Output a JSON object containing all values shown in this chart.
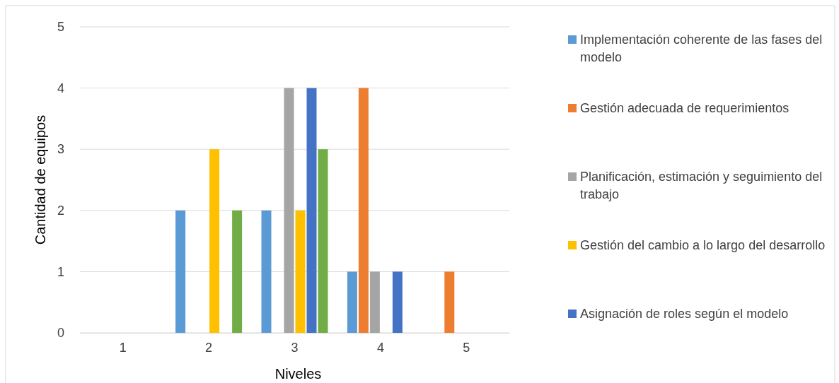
{
  "chart_data": {
    "type": "bar",
    "xlabel": "Niveles",
    "ylabel": "Cantidad de equipos",
    "categories": [
      "1",
      "2",
      "3",
      "4",
      "5"
    ],
    "series": [
      {
        "name": "Implementación coherente de las fases del modelo",
        "color": "#5b9bd5",
        "values": [
          0,
          2,
          2,
          1,
          0
        ]
      },
      {
        "name": "Gestión adecuada de requerimientos",
        "color": "#ed7d31",
        "values": [
          0,
          0,
          0,
          4,
          1
        ]
      },
      {
        "name": "Planificación, estimación y seguimiento del trabajo",
        "color": "#a5a5a5",
        "values": [
          0,
          0,
          4,
          1,
          0
        ]
      },
      {
        "name": "Gestión del cambio a lo largo del desarrollo",
        "color": "#ffc000",
        "values": [
          0,
          3,
          2,
          0,
          0
        ]
      },
      {
        "name": "Asignación de roles según el modelo",
        "color": "#4472c4",
        "values": [
          0,
          0,
          4,
          1,
          0
        ]
      },
      {
        "color": "#70ad47",
        "values": [
          0,
          2,
          3,
          0,
          0
        ]
      }
    ],
    "ylim": [
      0,
      5
    ],
    "yticks": [
      0,
      1,
      2,
      3,
      4,
      5
    ],
    "grid": "y",
    "legend": "right"
  }
}
